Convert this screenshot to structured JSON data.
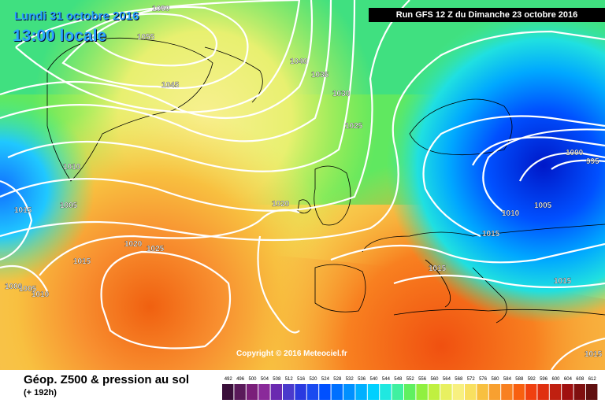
{
  "header": {
    "date": "Lundi 31 octobre 2016",
    "time": "13:00 locale",
    "run": "Run GFS 12 Z du Dimanche 23 octobre 2016"
  },
  "copyright": "Copyright © 2016 Meteociel.fr",
  "legend": {
    "title": "Géop. Z500 & pression au sol",
    "subtitle": "(+ 192h)",
    "scale_labels": [
      "492",
      "496",
      "500",
      "504",
      "508",
      "512",
      "516",
      "520",
      "524",
      "528",
      "532",
      "536",
      "540",
      "544",
      "548",
      "552",
      "556",
      "560",
      "564",
      "568",
      "572",
      "576",
      "580",
      "584",
      "588",
      "592",
      "596",
      "600",
      "604",
      "608",
      "612"
    ],
    "scale_colors": [
      "#3a0f3a",
      "#5a1a5a",
      "#7a1f7a",
      "#8a2a9a",
      "#6a2ab0",
      "#4a3acc",
      "#2a3ae0",
      "#1a4af0",
      "#0050ff",
      "#0070ff",
      "#0090ff",
      "#00b0ff",
      "#00d0ff",
      "#20e8e0",
      "#40f0a0",
      "#60f060",
      "#90f040",
      "#c0f040",
      "#e8f060",
      "#f8f080",
      "#f8e060",
      "#f8c040",
      "#f8a030",
      "#f88020",
      "#f86010",
      "#f04010",
      "#e03010",
      "#c02010",
      "#a01010",
      "#801010",
      "#601010"
    ]
  },
  "isobar_labels": [
    {
      "text": "1050"
    },
    {
      "text": "1055"
    },
    {
      "text": "1045"
    },
    {
      "text": "1040"
    },
    {
      "text": "1035"
    },
    {
      "text": "1030"
    },
    {
      "text": "1025"
    },
    {
      "text": "1020"
    },
    {
      "text": "1010"
    },
    {
      "text": "1005"
    },
    {
      "text": "1015"
    },
    {
      "text": "1020"
    },
    {
      "text": "1025"
    },
    {
      "text": "1015"
    },
    {
      "text": "1000"
    },
    {
      "text": "1005"
    },
    {
      "text": "1010"
    },
    {
      "text": "1000"
    },
    {
      "text": "995"
    },
    {
      "text": "1005"
    },
    {
      "text": "1010"
    },
    {
      "text": "1015"
    },
    {
      "text": "1015"
    },
    {
      "text": "1015"
    },
    {
      "text": "1015"
    }
  ]
}
